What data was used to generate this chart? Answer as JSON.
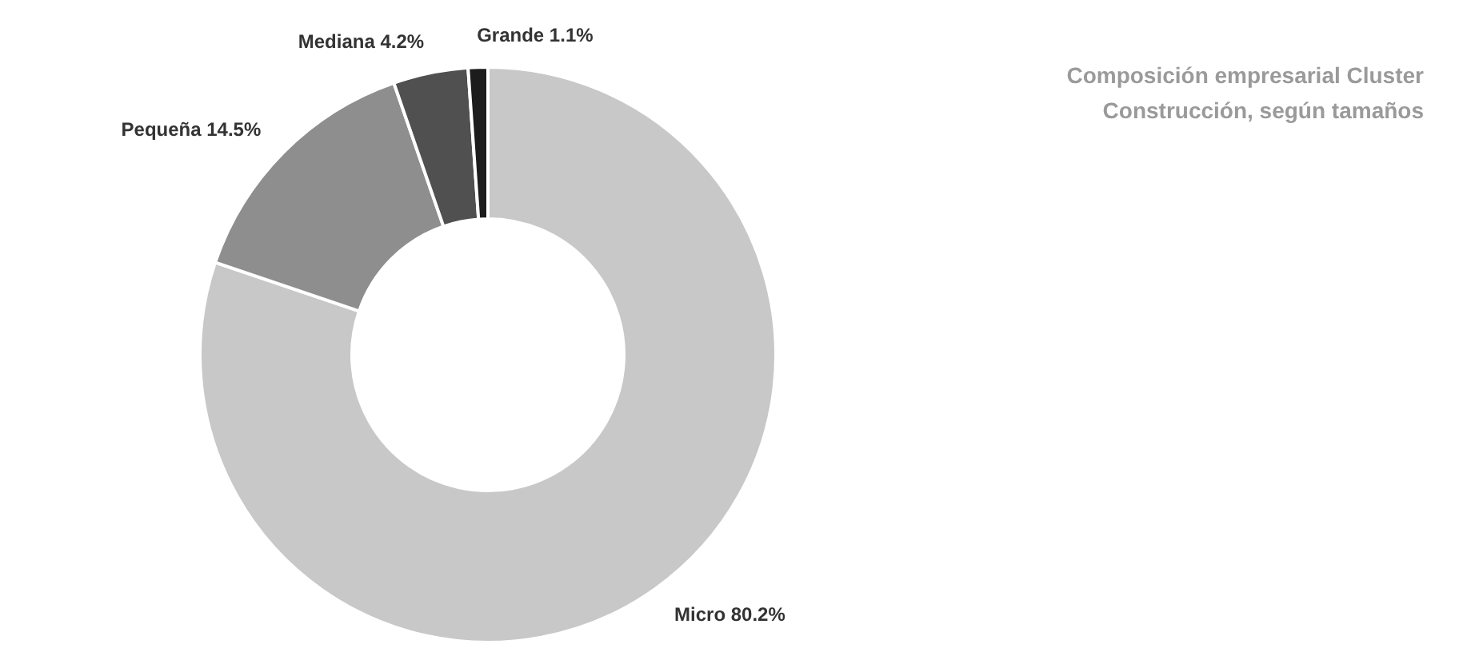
{
  "chart_data": {
    "type": "donut",
    "title": "Composición empresarial Cluster\nConstrucción, según tamaños",
    "categories": [
      "Micro",
      "Pequeña",
      "Mediana",
      "Grande"
    ],
    "values": [
      80.2,
      14.5,
      4.2,
      1.1
    ],
    "value_labels": [
      "80.2%",
      "14.5%",
      "4.2%",
      "1.1%"
    ],
    "colors": [
      "#c8c8c8",
      "#8e8e8e",
      "#505050",
      "#1c1c1c"
    ]
  }
}
